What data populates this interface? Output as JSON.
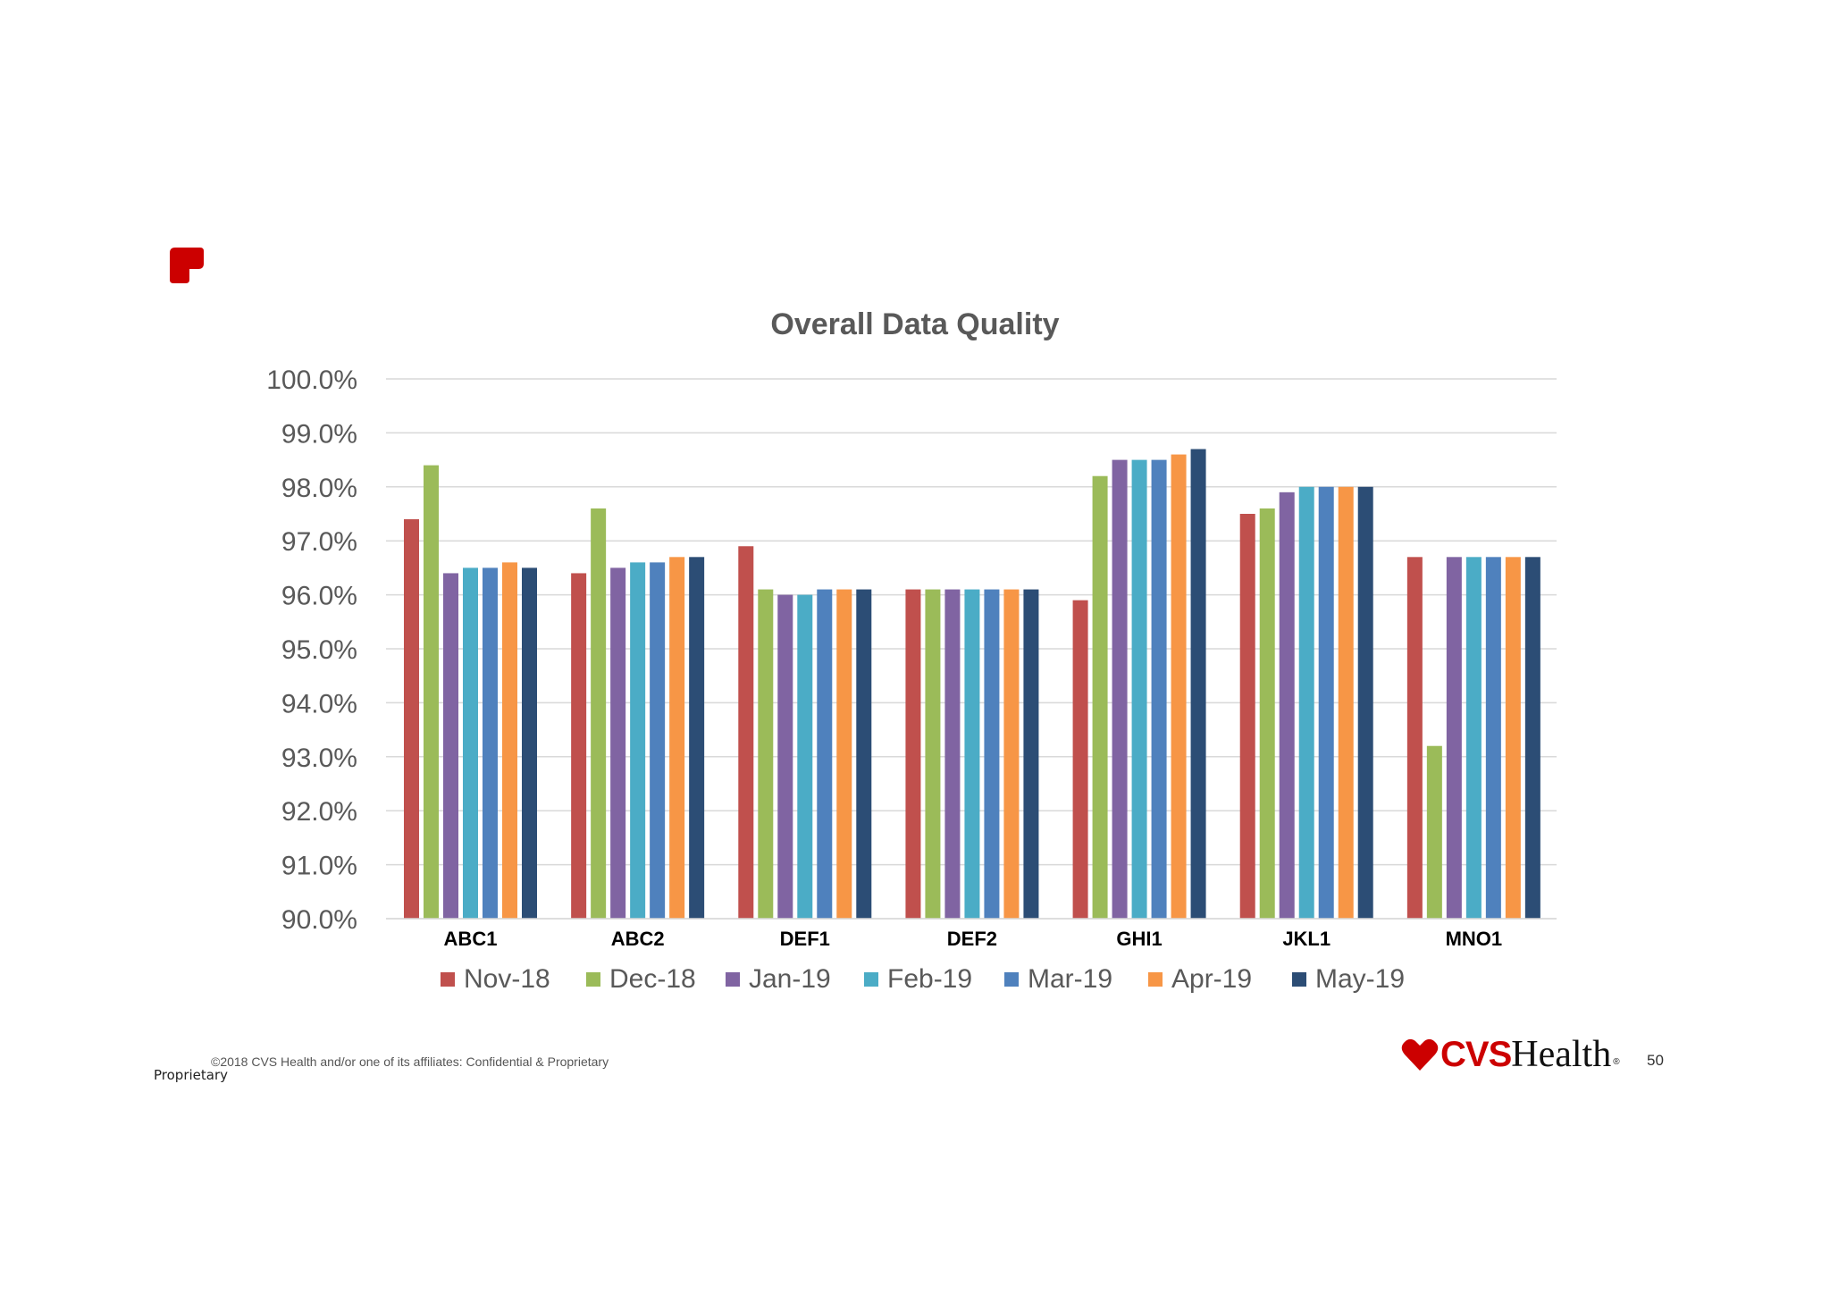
{
  "chart_data": {
    "type": "bar",
    "title": "Overall Data Quality",
    "xlabel": "",
    "ylabel": "",
    "ylim": [
      90,
      100
    ],
    "y_tick_step": 1,
    "y_tick_format": "percent_1dp",
    "grid": true,
    "legend_position": "bottom",
    "categories": [
      "ABC1",
      "ABC2",
      "DEF1",
      "DEF2",
      "GHI1",
      "JKL1",
      "MNO1"
    ],
    "series": [
      {
        "name": "Nov-18",
        "color": "#c0504d",
        "values": [
          97.4,
          96.4,
          96.9,
          96.1,
          95.9,
          97.5,
          96.7
        ]
      },
      {
        "name": "Dec-18",
        "color": "#9bbb59",
        "values": [
          98.4,
          97.6,
          96.1,
          96.1,
          98.2,
          97.6,
          93.2
        ]
      },
      {
        "name": "Jan-19",
        "color": "#8064a2",
        "values": [
          96.4,
          96.5,
          96.0,
          96.1,
          98.5,
          97.9,
          96.7
        ]
      },
      {
        "name": "Feb-19",
        "color": "#4bacc6",
        "values": [
          96.5,
          96.6,
          96.0,
          96.1,
          98.5,
          98.0,
          96.7
        ]
      },
      {
        "name": "Mar-19",
        "color": "#4f81bd",
        "values": [
          96.5,
          96.6,
          96.1,
          96.1,
          98.5,
          98.0,
          96.7
        ]
      },
      {
        "name": "Apr-19",
        "color": "#f79646",
        "values": [
          96.6,
          96.7,
          96.1,
          96.1,
          98.6,
          98.0,
          96.7
        ]
      },
      {
        "name": "May-19",
        "color": "#2c4d75",
        "values": [
          96.5,
          96.7,
          96.1,
          96.1,
          98.7,
          98.0,
          96.7
        ]
      }
    ]
  },
  "footer": {
    "copyright": "©2018 CVS Health and/or one of its affiliates: Confidential & Proprietary",
    "classification": "Proprietary",
    "brand_cvs": "CVS",
    "brand_health": "Health",
    "brand_registered": "®",
    "page_number": "50"
  },
  "icons": {
    "corner_logo": "red-bookmark-shape-icon",
    "brand_heart": "heart-icon"
  },
  "colors": {
    "brand_red": "#cc0000",
    "title_gray": "#595959",
    "gridline": "#d9d9d9"
  }
}
